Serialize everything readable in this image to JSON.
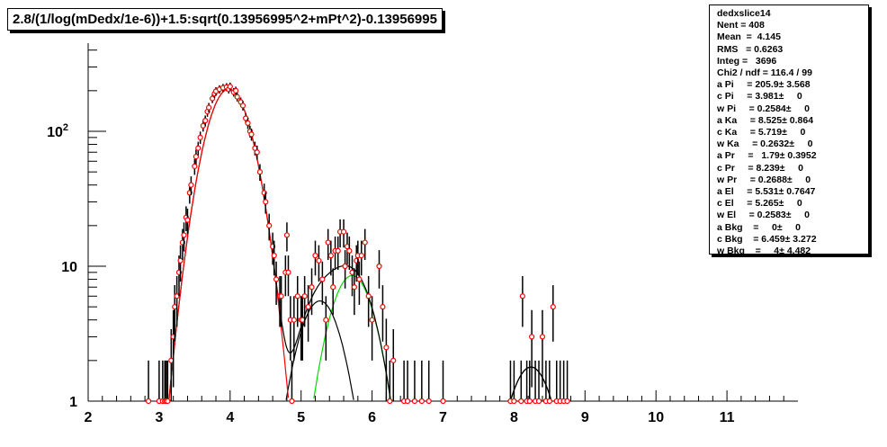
{
  "chart_data": {
    "type": "scatter",
    "title": "2.8/(1/log(mDedx/1e-6))+1.5:sqrt(0.13956995^2+mPt^2)-0.13956995",
    "xlim": [
      2,
      12
    ],
    "ylim": [
      1,
      450
    ],
    "yscale": "log",
    "x_ticks": [
      "2",
      "3",
      "4",
      "5",
      "6",
      "7",
      "8",
      "9",
      "10",
      "11"
    ],
    "y_ticks": [
      {
        "v": 1,
        "label": "1"
      },
      {
        "v": 10,
        "label": "10"
      },
      {
        "v": 100,
        "label": "10",
        "sup": "2"
      }
    ],
    "marker_color": "#ff0000",
    "points": [
      [
        2.85,
        1
      ],
      [
        3.0,
        1
      ],
      [
        3.05,
        1
      ],
      [
        3.08,
        1
      ],
      [
        3.1,
        1
      ],
      [
        3.12,
        1
      ],
      [
        3.17,
        2
      ],
      [
        3.2,
        3
      ],
      [
        3.22,
        5
      ],
      [
        3.25,
        6
      ],
      [
        3.28,
        9
      ],
      [
        3.3,
        11
      ],
      [
        3.33,
        15
      ],
      [
        3.35,
        17
      ],
      [
        3.38,
        23
      ],
      [
        3.4,
        22
      ],
      [
        3.43,
        35
      ],
      [
        3.45,
        40
      ],
      [
        3.5,
        55
      ],
      [
        3.52,
        65
      ],
      [
        3.55,
        75
      ],
      [
        3.58,
        90
      ],
      [
        3.62,
        110
      ],
      [
        3.65,
        120
      ],
      [
        3.68,
        140
      ],
      [
        3.7,
        150
      ],
      [
        3.75,
        175
      ],
      [
        3.78,
        190
      ],
      [
        3.8,
        198
      ],
      [
        3.85,
        205
      ],
      [
        3.9,
        210
      ],
      [
        3.95,
        213
      ],
      [
        3.98,
        205
      ],
      [
        4.0,
        215
      ],
      [
        4.05,
        195
      ],
      [
        4.08,
        200
      ],
      [
        4.1,
        180
      ],
      [
        4.15,
        165
      ],
      [
        4.18,
        155
      ],
      [
        4.22,
        125
      ],
      [
        4.25,
        115
      ],
      [
        4.28,
        100
      ],
      [
        4.3,
        95
      ],
      [
        4.35,
        75
      ],
      [
        4.38,
        70
      ],
      [
        4.42,
        50
      ],
      [
        4.48,
        35
      ],
      [
        4.5,
        30
      ],
      [
        4.55,
        20
      ],
      [
        4.6,
        14
      ],
      [
        4.62,
        12
      ],
      [
        4.65,
        8
      ],
      [
        4.7,
        6
      ],
      [
        4.72,
        6
      ],
      [
        4.78,
        9
      ],
      [
        4.8,
        17
      ],
      [
        4.82,
        9
      ],
      [
        4.85,
        4
      ],
      [
        4.87,
        1
      ],
      [
        4.9,
        4
      ],
      [
        4.95,
        6
      ],
      [
        5.0,
        4
      ],
      [
        5.02,
        4
      ],
      [
        5.05,
        6
      ],
      [
        5.1,
        5
      ],
      [
        5.15,
        7
      ],
      [
        5.2,
        12
      ],
      [
        5.25,
        11
      ],
      [
        5.3,
        8
      ],
      [
        5.35,
        4
      ],
      [
        5.38,
        15
      ],
      [
        5.42,
        12
      ],
      [
        5.45,
        7
      ],
      [
        5.48,
        13
      ],
      [
        5.52,
        13
      ],
      [
        5.55,
        18
      ],
      [
        5.6,
        18
      ],
      [
        5.62,
        10
      ],
      [
        5.65,
        14
      ],
      [
        5.68,
        13
      ],
      [
        5.72,
        9
      ],
      [
        5.75,
        7
      ],
      [
        5.78,
        11
      ],
      [
        5.8,
        12
      ],
      [
        5.82,
        8
      ],
      [
        5.85,
        12
      ],
      [
        5.9,
        15
      ],
      [
        5.95,
        6
      ],
      [
        6.0,
        4
      ],
      [
        6.1,
        10
      ],
      [
        6.15,
        5
      ],
      [
        6.2,
        2.5
      ],
      [
        6.25,
        1
      ],
      [
        6.3,
        2
      ],
      [
        6.45,
        1
      ],
      [
        6.5,
        1
      ],
      [
        6.6,
        1
      ],
      [
        6.7,
        1
      ],
      [
        6.8,
        1
      ],
      [
        7.0,
        1
      ],
      [
        7.95,
        1
      ],
      [
        8.0,
        1
      ],
      [
        8.1,
        1
      ],
      [
        8.12,
        6
      ],
      [
        8.18,
        1
      ],
      [
        8.22,
        1
      ],
      [
        8.25,
        3
      ],
      [
        8.3,
        1
      ],
      [
        8.35,
        1
      ],
      [
        8.4,
        3
      ],
      [
        8.45,
        1
      ],
      [
        8.5,
        1
      ],
      [
        8.55,
        5
      ],
      [
        8.6,
        1
      ],
      [
        8.65,
        1
      ],
      [
        8.7,
        1
      ],
      [
        8.75,
        1
      ]
    ],
    "fit_components": [
      {
        "name": "Pi",
        "a": 205.9,
        "c": 3.981,
        "w": 0.2584,
        "color": "#ff0000"
      },
      {
        "name": "Ka",
        "a": 8.525,
        "c": 5.719,
        "w": 0.2632,
        "color": "#00dd00"
      },
      {
        "name": "Pr",
        "a": 1.79,
        "c": 8.239,
        "w": 0.2688,
        "color": "#000000"
      },
      {
        "name": "El",
        "a": 5.531,
        "c": 5.265,
        "w": 0.2583,
        "color": "#000000"
      }
    ],
    "total_color": "#000000"
  },
  "stats": {
    "lines": [
      "dedxslice14",
      "Nent = 408",
      "Mean  =  4.145",
      "RMS   = 0.6263",
      "Integ =   3696",
      "Chi2 / ndf = 116.4 / 99",
      "a Pi     = 205.9± 3.568",
      "c Pi     = 3.981±     0",
      "w Pi     = 0.2584±     0",
      "a Ka     = 8.525± 0.864",
      "c Ka     = 5.719±     0",
      "w Ka     = 0.2632±     0",
      "a Pr     =   1.79± 0.3952",
      "c Pr     = 8.239±     0",
      "w Pr     = 0.2688±     0",
      "a El     = 5.531± 0.7647",
      "c El     = 5.265±     0",
      "w El     = 0.2583±     0",
      "a Bkg    =     0±     0",
      "c Bkg    = 6.459± 3.272",
      "w Bkg    =     4± 4.482"
    ]
  }
}
